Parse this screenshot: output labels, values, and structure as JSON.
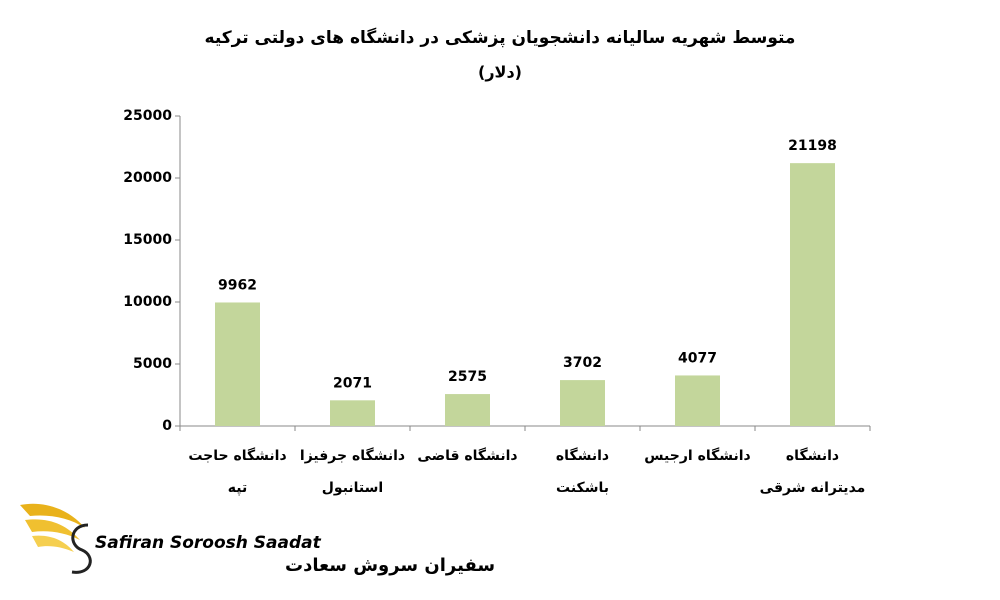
{
  "chart_data": {
    "type": "bar",
    "title": "متوسط شهریه سالیانه دانشجویان پزشکی در دانشگاه های دولتی ترکیه",
    "subtitle": "(دلار)",
    "categories": [
      [
        "دانشگاه حاجت",
        "تپه"
      ],
      [
        "دانشگاه جرفیزا",
        "استانبول"
      ],
      [
        "دانشگاه قاضی"
      ],
      [
        "دانشگاه",
        "باشکنت"
      ],
      [
        "دانشگاه ارجیس"
      ],
      [
        "دانشگاه",
        "مدیترانه شرقی"
      ]
    ],
    "values": [
      9962,
      2071,
      2575,
      3702,
      4077,
      21198
    ],
    "color": "#c3d69b",
    "ylim": [
      0,
      25000
    ],
    "yticks": [
      0,
      5000,
      10000,
      15000,
      20000,
      25000
    ],
    "grid": false
  },
  "logo": {
    "name": "Safiran Soroosh Saadat",
    "name_fa": "سفیران سروش سعادت"
  }
}
